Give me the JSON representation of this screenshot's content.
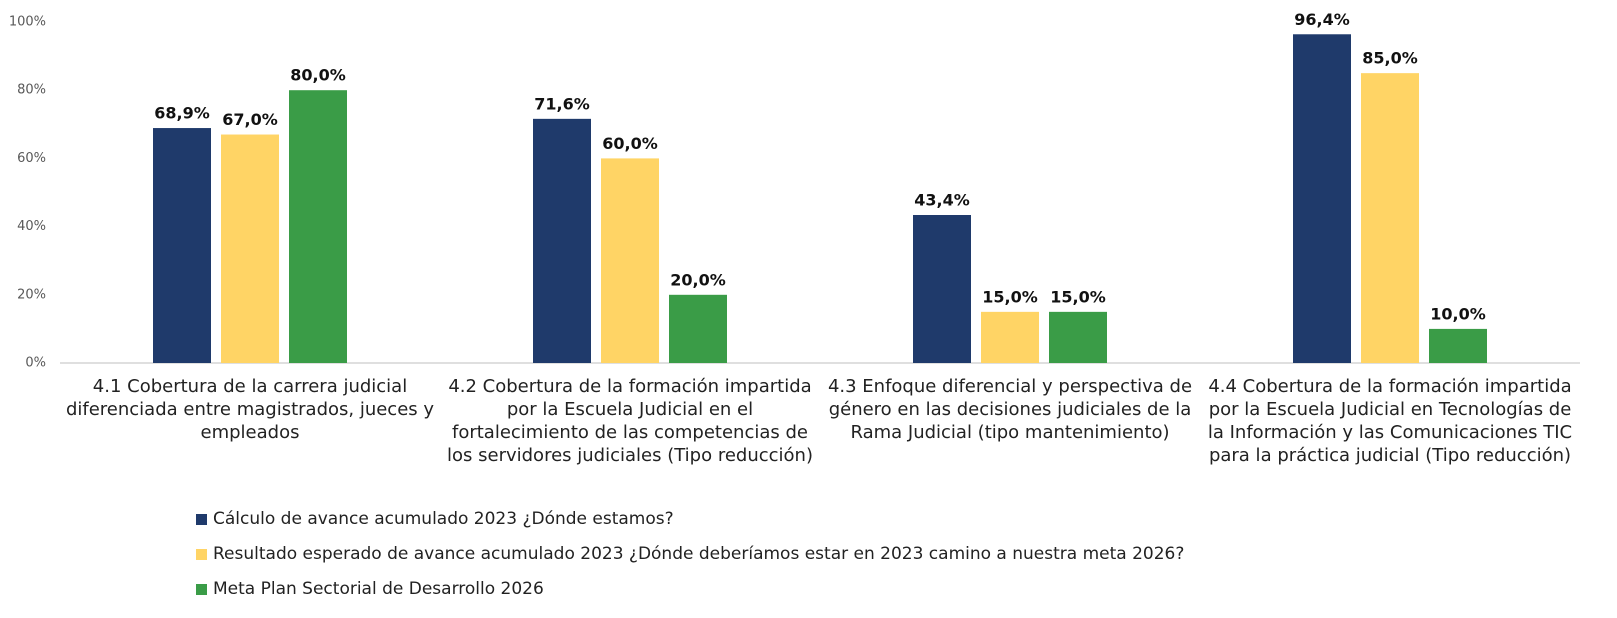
{
  "chart_data": {
    "type": "bar",
    "categories": [
      "4.1 Cobertura de la carrera judicial diferenciada entre magistrados, jueces y empleados",
      "4.2 Cobertura de la formación impartida por la Escuela Judicial en el fortalecimiento de las competencias de los servidores judiciales (Tipo reducción)",
      "4.3 Enfoque diferencial y perspectiva de género en las decisiones judiciales de la Rama Judicial  (tipo mantenimiento)",
      "4.4 Cobertura de la formación impartida por la Escuela Judicial en Tecnologías de la Información y las Comunicaciones TIC para la práctica judicial (Tipo reducción)"
    ],
    "series": [
      {
        "name": "Cálculo de avance acumulado 2023 ¿Dónde estamos?",
        "color": "#1f3a6b",
        "values": [
          68.9,
          71.6,
          43.4,
          96.4
        ],
        "value_labels": [
          "68,9%",
          "71,6%",
          "43,4%",
          "96,4%"
        ]
      },
      {
        "name": "Resultado esperado de avance acumulado 2023 ¿Dónde deberíamos estar en 2023 camino a nuestra meta 2026?",
        "color": "#ffd465",
        "values": [
          67.0,
          60.0,
          15.0,
          85.0
        ],
        "value_labels": [
          "67,0%",
          "60,0%",
          "15,0%",
          "85,0%"
        ]
      },
      {
        "name": "Meta Plan Sectorial de Desarrollo  2026",
        "color": "#3a9c47",
        "values": [
          80.0,
          20.0,
          15.0,
          10.0
        ],
        "value_labels": [
          "80,0%",
          "20,0%",
          "15,0%",
          "10,0%"
        ]
      }
    ],
    "ylim": [
      0,
      100
    ],
    "yticks": [
      {
        "value": 0,
        "label": "0%"
      },
      {
        "value": 20,
        "label": "20%"
      },
      {
        "value": 40,
        "label": "40%"
      },
      {
        "value": 60,
        "label": "60%"
      },
      {
        "value": 80,
        "label": "80%"
      },
      {
        "value": 100,
        "label": "100%"
      }
    ],
    "grid": false,
    "legend": "bottom"
  }
}
